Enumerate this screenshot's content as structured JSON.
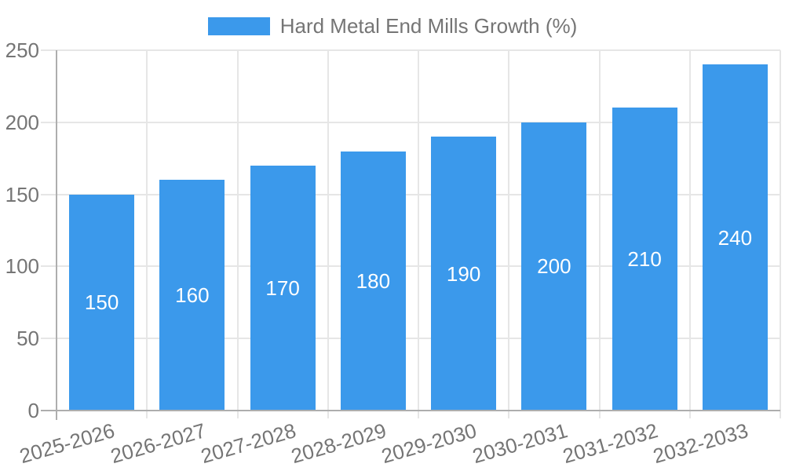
{
  "chart_data": {
    "type": "bar",
    "title": "Hard Metal End Mills Growth (%)",
    "categories": [
      "2025-2026",
      "2026-2027",
      "2027-2028",
      "2028-2029",
      "2029-2030",
      "2030-2031",
      "2031-2032",
      "2032-2033"
    ],
    "values": [
      150,
      160,
      170,
      180,
      190,
      200,
      210,
      240
    ],
    "xlabel": "",
    "ylabel": "",
    "ylim": [
      0,
      250
    ],
    "yticks": [
      0,
      50,
      100,
      150,
      200,
      250
    ],
    "grid": true,
    "legend_position": "top-center",
    "bar_labels_inside": true,
    "colors": {
      "bar": "#3b99eb",
      "grid": "#e6e6e6",
      "axis": "#aeaeae",
      "text": "#757575",
      "value_label": "#ffffff"
    }
  }
}
